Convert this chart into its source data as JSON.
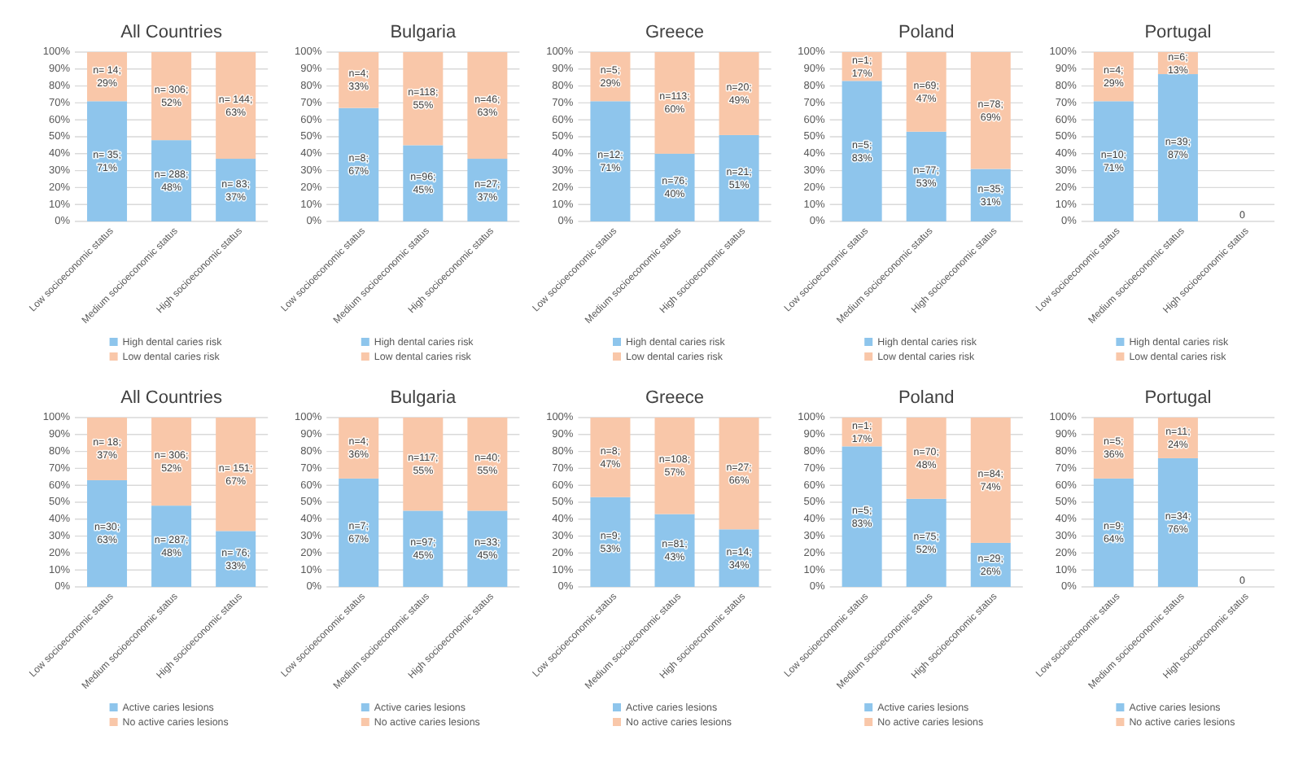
{
  "chart_data": [
    {
      "type": "bar",
      "title": "All Countries",
      "categories": [
        "Low socioeconomic status",
        "Medium socioeconomic status",
        "High socioeconomic status"
      ],
      "stacked": true,
      "grid": "y",
      "legend": "bottom",
      "ylim": [
        0,
        100
      ],
      "yticks": [
        {
          "value": 0,
          "label": "0%"
        },
        {
          "value": 10,
          "label": "10%"
        },
        {
          "value": 20,
          "label": "20%"
        },
        {
          "value": 30,
          "label": "30%"
        },
        {
          "value": 40,
          "label": "40%"
        },
        {
          "value": 50,
          "label": "50%"
        },
        {
          "value": 60,
          "label": "60%"
        },
        {
          "value": 70,
          "label": "70%"
        },
        {
          "value": 80,
          "label": "80%"
        },
        {
          "value": 90,
          "label": "90%"
        },
        {
          "value": 100,
          "label": "100%"
        }
      ],
      "series": [
        {
          "name": "High dental caries risk",
          "color": "#8ec5ec",
          "values": [
            71,
            48,
            37
          ],
          "value_labels": [
            "n= 35; 71%",
            "n= 288; 48%",
            "n= 83; 37%"
          ]
        },
        {
          "name": "Low dental caries risk",
          "color": "#f9c7a9",
          "values": [
            29,
            52,
            63
          ],
          "value_labels": [
            "n= 14; 29%",
            "n= 306; 52%",
            "n= 144; 63%"
          ]
        }
      ]
    },
    {
      "type": "bar",
      "title": "Bulgaria",
      "categories": [
        "Low socioeconomic status",
        "Medium socioeconomic status",
        "High socioeconomic status"
      ],
      "stacked": true,
      "grid": "y",
      "legend": "bottom",
      "ylim": [
        0,
        100
      ],
      "yticks": [
        {
          "value": 0,
          "label": "0%"
        },
        {
          "value": 10,
          "label": "10%"
        },
        {
          "value": 20,
          "label": "20%"
        },
        {
          "value": 30,
          "label": "30%"
        },
        {
          "value": 40,
          "label": "40%"
        },
        {
          "value": 50,
          "label": "50%"
        },
        {
          "value": 60,
          "label": "60%"
        },
        {
          "value": 70,
          "label": "70%"
        },
        {
          "value": 80,
          "label": "80%"
        },
        {
          "value": 90,
          "label": "90%"
        },
        {
          "value": 100,
          "label": "100%"
        }
      ],
      "series": [
        {
          "name": "High dental caries risk",
          "color": "#8ec5ec",
          "values": [
            67,
            45,
            37
          ],
          "value_labels": [
            "n=8; 67%",
            "n=96; 45%",
            "n=27; 37%"
          ]
        },
        {
          "name": "Low dental caries risk",
          "color": "#f9c7a9",
          "values": [
            33,
            55,
            63
          ],
          "value_labels": [
            "n=4; 33%",
            "n=118; 55%",
            "n=46; 63%"
          ]
        }
      ]
    },
    {
      "type": "bar",
      "title": "Greece",
      "categories": [
        "Low socioeconomic status",
        "Medium socioeconomic status",
        "High socioeconomic status"
      ],
      "stacked": true,
      "grid": "y",
      "legend": "bottom",
      "ylim": [
        0,
        100
      ],
      "yticks": [
        {
          "value": 0,
          "label": "0%"
        },
        {
          "value": 10,
          "label": "10%"
        },
        {
          "value": 20,
          "label": "20%"
        },
        {
          "value": 30,
          "label": "30%"
        },
        {
          "value": 40,
          "label": "40%"
        },
        {
          "value": 50,
          "label": "50%"
        },
        {
          "value": 60,
          "label": "60%"
        },
        {
          "value": 70,
          "label": "70%"
        },
        {
          "value": 80,
          "label": "80%"
        },
        {
          "value": 90,
          "label": "90%"
        },
        {
          "value": 100,
          "label": "100%"
        }
      ],
      "series": [
        {
          "name": "High dental caries risk",
          "color": "#8ec5ec",
          "values": [
            71,
            40,
            51
          ],
          "value_labels": [
            "n=12; 71%",
            "n=76; 40%",
            "n=21; 51%"
          ]
        },
        {
          "name": "Low dental caries risk",
          "color": "#f9c7a9",
          "values": [
            29,
            60,
            49
          ],
          "value_labels": [
            "n=5; 29%",
            "n=113; 60%",
            "n=20; 49%"
          ]
        }
      ]
    },
    {
      "type": "bar",
      "title": "Poland",
      "categories": [
        "Low socioeconomic status",
        "Medium socioeconomic status",
        "High socioeconomic status"
      ],
      "stacked": true,
      "grid": "y",
      "legend": "bottom",
      "ylim": [
        0,
        100
      ],
      "yticks": [
        {
          "value": 0,
          "label": "0%"
        },
        {
          "value": 10,
          "label": "10%"
        },
        {
          "value": 20,
          "label": "20%"
        },
        {
          "value": 30,
          "label": "30%"
        },
        {
          "value": 40,
          "label": "40%"
        },
        {
          "value": 50,
          "label": "50%"
        },
        {
          "value": 60,
          "label": "60%"
        },
        {
          "value": 70,
          "label": "70%"
        },
        {
          "value": 80,
          "label": "80%"
        },
        {
          "value": 90,
          "label": "90%"
        },
        {
          "value": 100,
          "label": "100%"
        }
      ],
      "series": [
        {
          "name": "High dental caries risk",
          "color": "#8ec5ec",
          "values": [
            83,
            53,
            31
          ],
          "value_labels": [
            "n=5; 83%",
            "n=77; 53%",
            "n=35; 31%"
          ]
        },
        {
          "name": "Low dental caries risk",
          "color": "#f9c7a9",
          "values": [
            17,
            47,
            69
          ],
          "value_labels": [
            "n=1; 17%",
            "n=69; 47%",
            "n=78; 69%"
          ]
        }
      ]
    },
    {
      "type": "bar",
      "title": "Portugal",
      "categories": [
        "Low socioeconomic status",
        "Medium socioeconomic status",
        "High socioeconomic status"
      ],
      "stacked": true,
      "grid": "y",
      "legend": "bottom",
      "ylim": [
        0,
        100
      ],
      "yticks": [
        {
          "value": 0,
          "label": "0%"
        },
        {
          "value": 10,
          "label": "10%"
        },
        {
          "value": 20,
          "label": "20%"
        },
        {
          "value": 30,
          "label": "30%"
        },
        {
          "value": 40,
          "label": "40%"
        },
        {
          "value": 50,
          "label": "50%"
        },
        {
          "value": 60,
          "label": "60%"
        },
        {
          "value": 70,
          "label": "70%"
        },
        {
          "value": 80,
          "label": "80%"
        },
        {
          "value": 90,
          "label": "90%"
        },
        {
          "value": 100,
          "label": "100%"
        }
      ],
      "series": [
        {
          "name": "High dental caries risk",
          "color": "#8ec5ec",
          "values": [
            71,
            87,
            0
          ],
          "value_labels": [
            "n=10; 71%",
            "n=39; 87%",
            "0"
          ]
        },
        {
          "name": "Low dental caries risk",
          "color": "#f9c7a9",
          "values": [
            29,
            13,
            0
          ],
          "value_labels": [
            "n=4; 29%",
            "n=6; 13%",
            null
          ]
        }
      ]
    },
    {
      "type": "bar",
      "title": "All Countries",
      "categories": [
        "Low socioeconomic status",
        "Medium socioeconomic status",
        "High socioeconomic status"
      ],
      "stacked": true,
      "grid": "y",
      "legend": "bottom",
      "ylim": [
        0,
        100
      ],
      "yticks": [
        {
          "value": 0,
          "label": "0%"
        },
        {
          "value": 10,
          "label": "10%"
        },
        {
          "value": 20,
          "label": "20%"
        },
        {
          "value": 30,
          "label": "30%"
        },
        {
          "value": 40,
          "label": "40%"
        },
        {
          "value": 50,
          "label": "50%"
        },
        {
          "value": 60,
          "label": "60%"
        },
        {
          "value": 70,
          "label": "70%"
        },
        {
          "value": 80,
          "label": "80%"
        },
        {
          "value": 90,
          "label": "90%"
        },
        {
          "value": 100,
          "label": "100%"
        }
      ],
      "series": [
        {
          "name": "Active caries lesions",
          "color": "#8ec5ec",
          "values": [
            63,
            48,
            33
          ],
          "value_labels": [
            "n=30; 63%",
            "n= 287; 48%",
            "n= 76; 33%"
          ]
        },
        {
          "name": "No active caries lesions",
          "color": "#f9c7a9",
          "values": [
            37,
            52,
            67
          ],
          "value_labels": [
            "n= 18; 37%",
            "n= 306; 52%",
            "n= 151; 67%"
          ]
        }
      ]
    },
    {
      "type": "bar",
      "title": "Bulgaria",
      "categories": [
        "Low socioeconomic status",
        "Medium socioeconomic status",
        "High socioeconomic status"
      ],
      "stacked": true,
      "grid": "y",
      "legend": "bottom",
      "ylim": [
        0,
        100
      ],
      "yticks": [
        {
          "value": 0,
          "label": "0%"
        },
        {
          "value": 10,
          "label": "10%"
        },
        {
          "value": 20,
          "label": "20%"
        },
        {
          "value": 30,
          "label": "30%"
        },
        {
          "value": 40,
          "label": "40%"
        },
        {
          "value": 50,
          "label": "50%"
        },
        {
          "value": 60,
          "label": "60%"
        },
        {
          "value": 70,
          "label": "70%"
        },
        {
          "value": 80,
          "label": "80%"
        },
        {
          "value": 90,
          "label": "90%"
        },
        {
          "value": 100,
          "label": "100%"
        }
      ],
      "series": [
        {
          "name": "Active caries lesions",
          "color": "#8ec5ec",
          "values": [
            64,
            45,
            45
          ],
          "value_labels": [
            null,
            "n=97; 45%",
            "n=33; 45%"
          ]
        },
        {
          "name": "No active caries lesions",
          "color": "#f9c7a9",
          "values": [
            36,
            55,
            55
          ],
          "value_labels": [
            "n=4; 36%",
            "n=117; 55%",
            "n=40; 55%"
          ]
        }
      ],
      "annotations": [
        "n=7; 67%"
      ]
    },
    {
      "type": "bar",
      "title": "Greece",
      "categories": [
        "Low socioeconomic status",
        "Medium socioeconomic status",
        "High socioeconomic status"
      ],
      "stacked": true,
      "grid": "y",
      "legend": "bottom",
      "ylim": [
        0,
        100
      ],
      "yticks": [
        {
          "value": 0,
          "label": "0%"
        },
        {
          "value": 10,
          "label": "10%"
        },
        {
          "value": 20,
          "label": "20%"
        },
        {
          "value": 30,
          "label": "30%"
        },
        {
          "value": 40,
          "label": "40%"
        },
        {
          "value": 50,
          "label": "50%"
        },
        {
          "value": 60,
          "label": "60%"
        },
        {
          "value": 70,
          "label": "70%"
        },
        {
          "value": 80,
          "label": "80%"
        },
        {
          "value": 90,
          "label": "90%"
        },
        {
          "value": 100,
          "label": "100%"
        }
      ],
      "series": [
        {
          "name": "Active caries lesions",
          "color": "#8ec5ec",
          "values": [
            53,
            43,
            34
          ],
          "value_labels": [
            "n=9; 53%",
            "n=81; 43%",
            "n=14; 34%"
          ]
        },
        {
          "name": "No active caries lesions",
          "color": "#f9c7a9",
          "values": [
            47,
            57,
            66
          ],
          "value_labels": [
            "n=8; 47%",
            "n=108; 57%",
            "n=27; 66%"
          ]
        }
      ]
    },
    {
      "type": "bar",
      "title": "Poland",
      "categories": [
        "Low socioeconomic status",
        "Medium socioeconomic status",
        "High socioeconomic status"
      ],
      "stacked": true,
      "grid": "y",
      "legend": "bottom",
      "ylim": [
        0,
        100
      ],
      "yticks": [
        {
          "value": 0,
          "label": "0%"
        },
        {
          "value": 10,
          "label": "10%"
        },
        {
          "value": 20,
          "label": "20%"
        },
        {
          "value": 30,
          "label": "30%"
        },
        {
          "value": 40,
          "label": "40%"
        },
        {
          "value": 50,
          "label": "50%"
        },
        {
          "value": 60,
          "label": "60%"
        },
        {
          "value": 70,
          "label": "70%"
        },
        {
          "value": 80,
          "label": "80%"
        },
        {
          "value": 90,
          "label": "90%"
        },
        {
          "value": 100,
          "label": "100%"
        }
      ],
      "series": [
        {
          "name": "Active caries lesions",
          "color": "#8ec5ec",
          "values": [
            83,
            52,
            26
          ],
          "value_labels": [
            "n=5; 83%",
            "n=75; 52%",
            "n=29; 26%"
          ]
        },
        {
          "name": "No active caries lesions",
          "color": "#f9c7a9",
          "values": [
            17,
            48,
            74
          ],
          "value_labels": [
            "n=1; 17%",
            "n=70; 48%",
            "n=84; 74%"
          ]
        }
      ]
    },
    {
      "type": "bar",
      "title": "Portugal",
      "categories": [
        "Low socioeconomic status",
        "Medium socioeconomic status",
        "High socioeconomic status"
      ],
      "stacked": true,
      "grid": "y",
      "legend": "bottom",
      "ylim": [
        0,
        100
      ],
      "yticks": [
        {
          "value": 0,
          "label": "0%"
        },
        {
          "value": 10,
          "label": "10%"
        },
        {
          "value": 20,
          "label": "20%"
        },
        {
          "value": 30,
          "label": "30%"
        },
        {
          "value": 40,
          "label": "40%"
        },
        {
          "value": 50,
          "label": "50%"
        },
        {
          "value": 60,
          "label": "60%"
        },
        {
          "value": 70,
          "label": "70%"
        },
        {
          "value": 80,
          "label": "80%"
        },
        {
          "value": 90,
          "label": "90%"
        },
        {
          "value": 100,
          "label": "100%"
        }
      ],
      "series": [
        {
          "name": "Active caries lesions",
          "color": "#8ec5ec",
          "values": [
            64,
            76,
            0
          ],
          "value_labels": [
            "n=9; 64%",
            "n=34; 76%",
            "0"
          ]
        },
        {
          "name": "No active caries lesions",
          "color": "#f9c7a9",
          "values": [
            36,
            24,
            0
          ],
          "value_labels": [
            "n=5; 36%",
            "n=11; 24%",
            null
          ]
        }
      ]
    }
  ]
}
